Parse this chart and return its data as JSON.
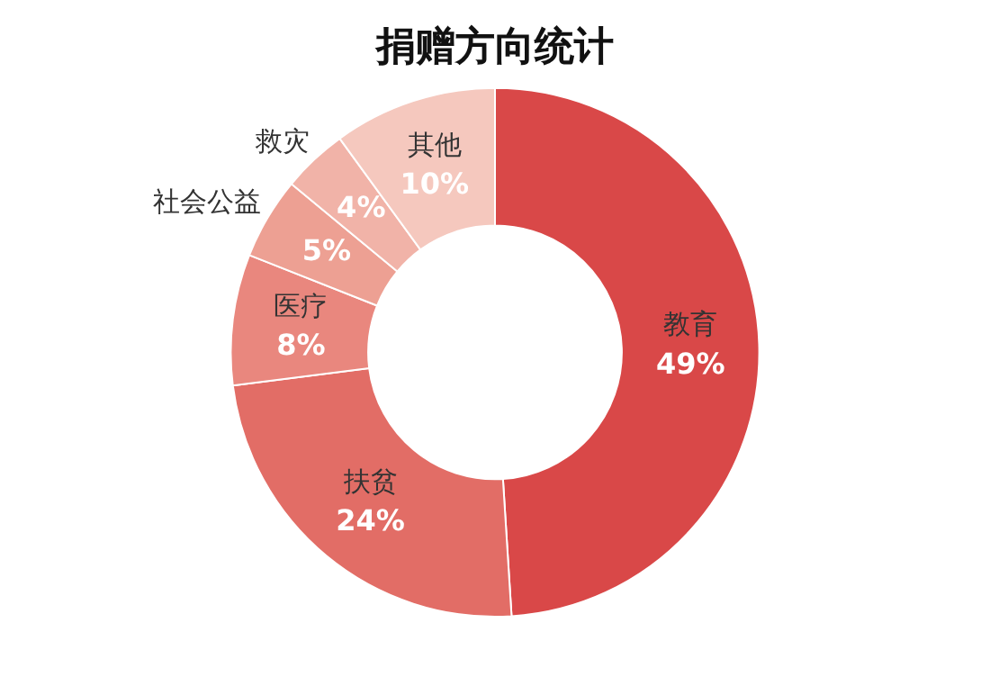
{
  "chart_data": {
    "type": "donut",
    "title": "捐赠方向统计",
    "categories": [
      "教育",
      "扶贫",
      "医疗",
      "社会公益",
      "救灾",
      "其他"
    ],
    "values": [
      49,
      24,
      8,
      5,
      4,
      10
    ],
    "value_labels": [
      "49%",
      "24%",
      "8%",
      "5%",
      "4%",
      "10%"
    ],
    "colors": [
      "#d94848",
      "#e26d66",
      "#e9877e",
      "#eda093",
      "#f1b3a8",
      "#f5c8be"
    ],
    "legend": false
  }
}
